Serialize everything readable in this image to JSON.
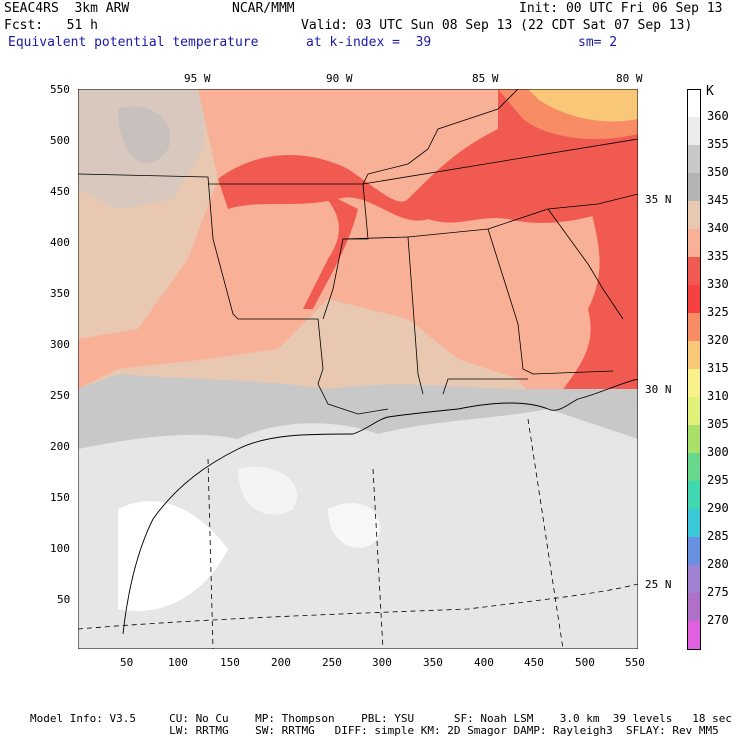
{
  "header": {
    "model": "SEAC4RS  3km ARW",
    "center": "NCAR/MMM",
    "init": "Init: 00 UTC Fri 06 Sep 13",
    "fcst": "Fcst:   51 h",
    "valid": "Valid: 03 UTC Sun 08 Sep 13 (22 CDT Sat 07 Sep 13)",
    "field": "Equivalent potential temperature",
    "level": "at k-index =  39",
    "smooth": "sm= 2"
  },
  "axes": {
    "x_ticks": [
      "50",
      "100",
      "150",
      "200",
      "250",
      "300",
      "350",
      "400",
      "450",
      "500",
      "550"
    ],
    "y_ticks": [
      "550",
      "500",
      "450",
      "400",
      "350",
      "300",
      "250",
      "200",
      "150",
      "100",
      "50"
    ],
    "lon_labels": [
      "95 W",
      "90 W",
      "85 W",
      "80 W"
    ],
    "lat_labels": [
      "35 N",
      "30 N",
      "25 N"
    ]
  },
  "colorbar": {
    "unit": "K",
    "labels": [
      "360",
      "355",
      "350",
      "345",
      "340",
      "335",
      "330",
      "325",
      "320",
      "315",
      "310",
      "305",
      "300",
      "295",
      "290",
      "285",
      "280",
      "275",
      "270"
    ],
    "colors": [
      "#ffffff",
      "#ececec",
      "#c8c8c8",
      "#b4b4b4",
      "#e8c8b0",
      "#f8b096",
      "#f05a50",
      "#f84040",
      "#f88c64",
      "#f8c878",
      "#f8f088",
      "#e0f078",
      "#a8e068",
      "#68d88c",
      "#40d8b0",
      "#38c8d8",
      "#6890e0",
      "#a080d0",
      "#b070c8",
      "#e060e0"
    ]
  },
  "footer": {
    "line1": "Model Info: V3.5     CU: No Cu    MP: Thompson    PBL: YSU      SF: Noah LSM    3.0 km  39 levels   18 sec",
    "line2": "                     LW: RRTMG    SW: RRTMG   DIFF: simple KM: 2D Smagor DAMP: Rayleigh3  SFLAY: Rev MM5"
  }
}
